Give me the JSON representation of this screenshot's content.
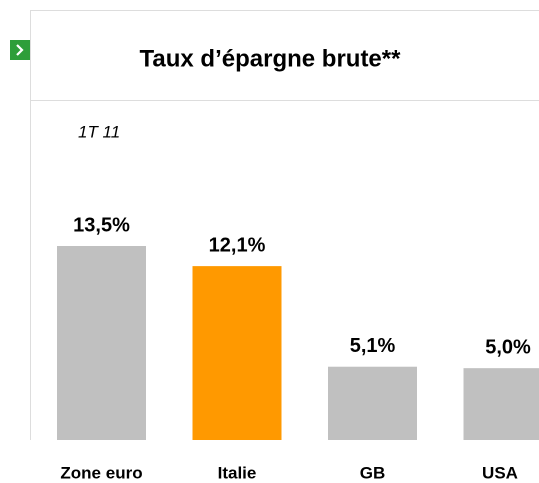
{
  "chart_data": {
    "type": "bar",
    "title": "Taux d’épargne brute**",
    "subtitle": "1T 11",
    "categories": [
      "Zone euro",
      "Italie",
      "GB",
      "USA"
    ],
    "values": [
      13.5,
      12.1,
      5.1,
      5.0
    ],
    "value_labels": [
      "13,5%",
      "12,1%",
      "5,1%",
      "5,0%"
    ],
    "colors": [
      "#c0c0c0",
      "#ff9900",
      "#c0c0c0",
      "#c0c0c0"
    ]
  }
}
